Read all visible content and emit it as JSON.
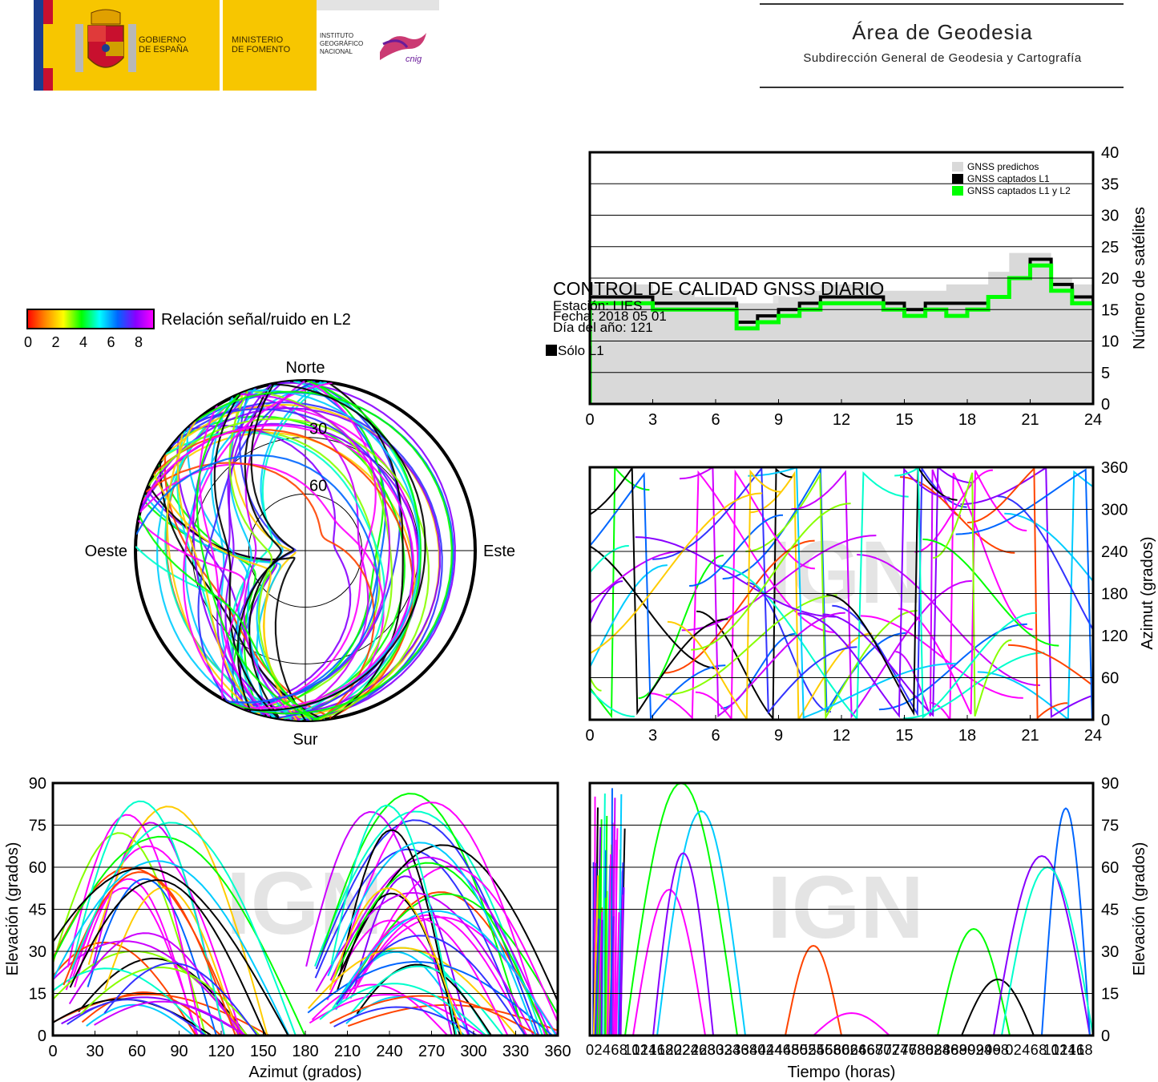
{
  "header": {
    "gov_line1": "GOBIERNO",
    "gov_line2": "DE ESPAÑA",
    "ministry_line1": "MINISTERIO",
    "ministry_line2": "DE FOMENTO",
    "institute_line1": "INSTITUTO",
    "institute_line2": "GEOGRÁFICO",
    "institute_line3": "NACIONAL",
    "cnig_logo_text": "cnig",
    "area_title": "Área de Geodesia",
    "area_subtitle": "Subdirección General de Geodesia y Cartografía"
  },
  "overlay": {
    "title": "CONTROL DE CALIDAD GNSS DIARIO",
    "station": "Estación: LIES",
    "date": "Fecha: 2018 05 01",
    "day_of_year": "Día del año: 121",
    "l1_only": "Sólo L1",
    "watermark": "IGN"
  },
  "colorbar": {
    "label": "Relación señal/ruido en L2",
    "ticks": [
      "0",
      "2",
      "4",
      "6",
      "8"
    ],
    "colors": [
      "#ff0000",
      "#ff8800",
      "#ffff00",
      "#00ff00",
      "#00ffff",
      "#0066ff",
      "#8800ff",
      "#ff00ff"
    ]
  },
  "colors": {
    "predicted": "#d9d9d9",
    "l1": "#000000",
    "l1l2": "#00ff00",
    "grid": "#000000"
  },
  "chart_data": [
    {
      "id": "satellite-count",
      "type": "area",
      "ylabel": "Número de satélites",
      "xlim": [
        0,
        24
      ],
      "ylim": [
        0,
        40
      ],
      "xticks": [
        "0",
        "3",
        "6",
        "9",
        "12",
        "15",
        "18",
        "21",
        "24"
      ],
      "yticks": [
        "0",
        "5",
        "10",
        "15",
        "20",
        "25",
        "30",
        "35",
        "40"
      ],
      "grid": true,
      "legend_position": "top-right",
      "x": [
        0,
        1,
        2,
        3,
        4,
        5,
        6,
        7,
        8,
        9,
        10,
        11,
        12,
        13,
        14,
        15,
        16,
        17,
        18,
        19,
        20,
        21,
        22,
        23,
        24
      ],
      "series": [
        {
          "name": "GNSS predichos",
          "values": [
            19,
            19,
            19,
            18,
            18,
            17,
            17,
            16,
            16,
            17,
            18,
            19,
            19,
            19,
            18,
            18,
            18,
            19,
            19,
            21,
            24,
            24,
            20,
            19,
            18
          ]
        },
        {
          "name": "GNSS captados L1",
          "values": [
            17,
            17,
            17,
            16,
            16,
            16,
            16,
            13,
            14,
            15,
            16,
            17,
            17,
            17,
            16,
            15,
            16,
            16,
            16,
            17,
            20,
            23,
            19,
            17,
            16
          ]
        },
        {
          "name": "GNSS captados L1 y L2",
          "values": [
            16,
            16,
            16,
            15,
            15,
            15,
            15,
            12,
            13,
            14,
            15,
            16,
            16,
            16,
            15,
            14,
            15,
            14,
            15,
            17,
            20,
            22,
            18,
            16,
            16
          ]
        }
      ]
    },
    {
      "id": "skyplot",
      "type": "scatter",
      "directions": [
        "Norte",
        "Sur",
        "Oeste",
        "Este"
      ],
      "ring_labels": [
        "30",
        "60"
      ]
    },
    {
      "id": "azimuth-time",
      "type": "scatter",
      "ylabel": "Azimut (grados)",
      "xlim": [
        0,
        24
      ],
      "ylim": [
        0,
        360
      ],
      "xticks": [
        "0",
        "3",
        "6",
        "9",
        "12",
        "15",
        "18",
        "21",
        "24"
      ],
      "yticks": [
        "0",
        "60",
        "120",
        "180",
        "240",
        "300",
        "360"
      ],
      "grid": true
    },
    {
      "id": "elevation-azimuth",
      "type": "scatter",
      "xlabel": "Azimut (grados)",
      "ylabel": "Elevación (grados)",
      "xlim": [
        0,
        360
      ],
      "ylim": [
        0,
        90
      ],
      "xticks": [
        "0",
        "30",
        "60",
        "90",
        "120",
        "150",
        "180",
        "210",
        "240",
        "270",
        "300",
        "330",
        "360"
      ],
      "yticks": [
        "0",
        "15",
        "30",
        "45",
        "60",
        "75",
        "90"
      ],
      "grid": true
    },
    {
      "id": "elevation-time",
      "type": "scatter",
      "xlabel": "Tiempo (horas)",
      "ylabel": "Elevación (grados)",
      "ylim": [
        0,
        90
      ],
      "yticks": [
        "0",
        "15",
        "30",
        "45",
        "60",
        "75",
        "90"
      ],
      "grid": true
    }
  ]
}
